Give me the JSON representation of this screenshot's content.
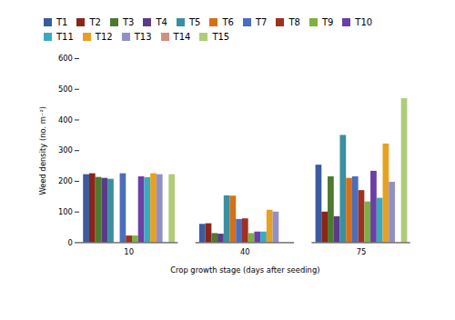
{
  "chart_data": {
    "type": "bar",
    "xlabel": "Crop growth stage (days after seeding)",
    "ylabel": "Weed density (no. m⁻²)",
    "categories": [
      "10",
      "40",
      "75"
    ],
    "series": [
      {
        "name": "T1",
        "color": "#3B5B9E",
        "values": [
          222,
          60,
          253
        ]
      },
      {
        "name": "T2",
        "color": "#8B2518",
        "values": [
          225,
          62,
          100
        ]
      },
      {
        "name": "T3",
        "color": "#4E7A30",
        "values": [
          213,
          30,
          215
        ]
      },
      {
        "name": "T4",
        "color": "#5C3A8A",
        "values": [
          210,
          28,
          85
        ]
      },
      {
        "name": "T5",
        "color": "#3A8FA0",
        "values": [
          207,
          153,
          350
        ]
      },
      {
        "name": "T6",
        "color": "#D4701A",
        "values": [
          0,
          152,
          210
        ]
      },
      {
        "name": "T7",
        "color": "#4A6EBB",
        "values": [
          225,
          76,
          215
        ]
      },
      {
        "name": "T8",
        "color": "#A03020",
        "values": [
          22,
          78,
          170
        ]
      },
      {
        "name": "T9",
        "color": "#7DB040",
        "values": [
          22,
          30,
          133
        ]
      },
      {
        "name": "T10",
        "color": "#6B3FA5",
        "values": [
          215,
          35,
          233
        ]
      },
      {
        "name": "T11",
        "color": "#3AAAC0",
        "values": [
          212,
          35,
          145
        ]
      },
      {
        "name": "T12",
        "color": "#E8A020",
        "values": [
          225,
          106,
          322
        ]
      },
      {
        "name": "T13",
        "color": "#9090C8",
        "values": [
          222,
          100,
          197
        ]
      },
      {
        "name": "T14",
        "color": "#D09080",
        "values": [
          0,
          0,
          0
        ]
      },
      {
        "name": "T15",
        "color": "#B0CC78",
        "values": [
          222,
          0,
          470
        ]
      }
    ],
    "ylim": [
      0,
      600
    ],
    "yticks": [
      0,
      100,
      200,
      300,
      400,
      500,
      600
    ],
    "grid": false,
    "legend": "top"
  }
}
